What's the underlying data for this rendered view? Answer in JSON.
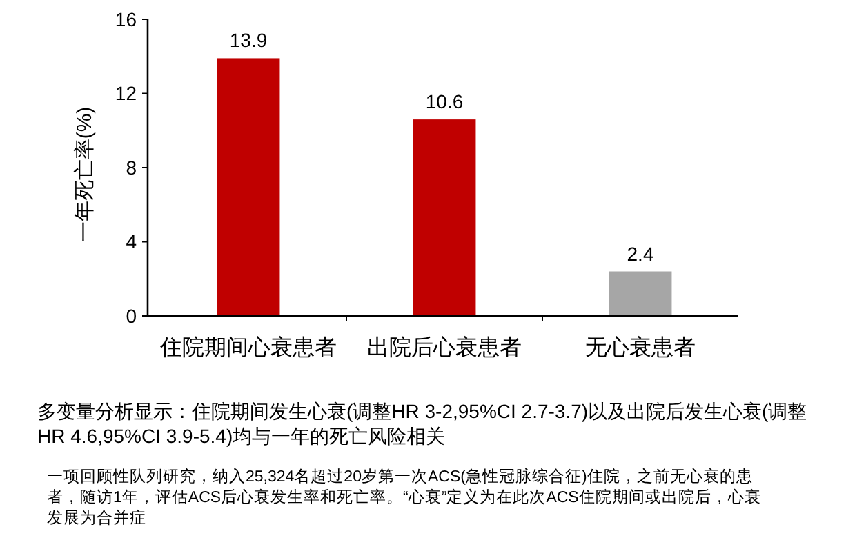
{
  "chart_data": {
    "type": "bar",
    "ylabel": "一年死亡率(%)",
    "categories": [
      "住院期间心衰患者",
      "出院后心衰患者",
      "无心衰患者"
    ],
    "values": [
      13.9,
      10.6,
      2.4
    ],
    "colors": [
      "#c00000",
      "#c00000",
      "#a6a6a6"
    ],
    "ylim": [
      0,
      16
    ],
    "yticks": [
      0,
      4,
      8,
      12,
      16
    ],
    "data_labels": true,
    "annotations": [
      "多变量分析显示：住院期间发生心衰(调整HR 3-2,95%CI 2.7-3.7)以及出院后发生心衰(调整HR 4.6,95%CI 3.9-5.4)均与一年的死亡风险相关",
      "一项回顾性队列研究，纳入25,324名超过20岁第一次ACS(急性冠脉综合征)住院，之前无心衰的患者，随访1年，评估ACS后心衰发生率和死亡率。“心衰”定义为在此次ACS住院期间或出院后，心衰发展为合并症"
    ]
  }
}
